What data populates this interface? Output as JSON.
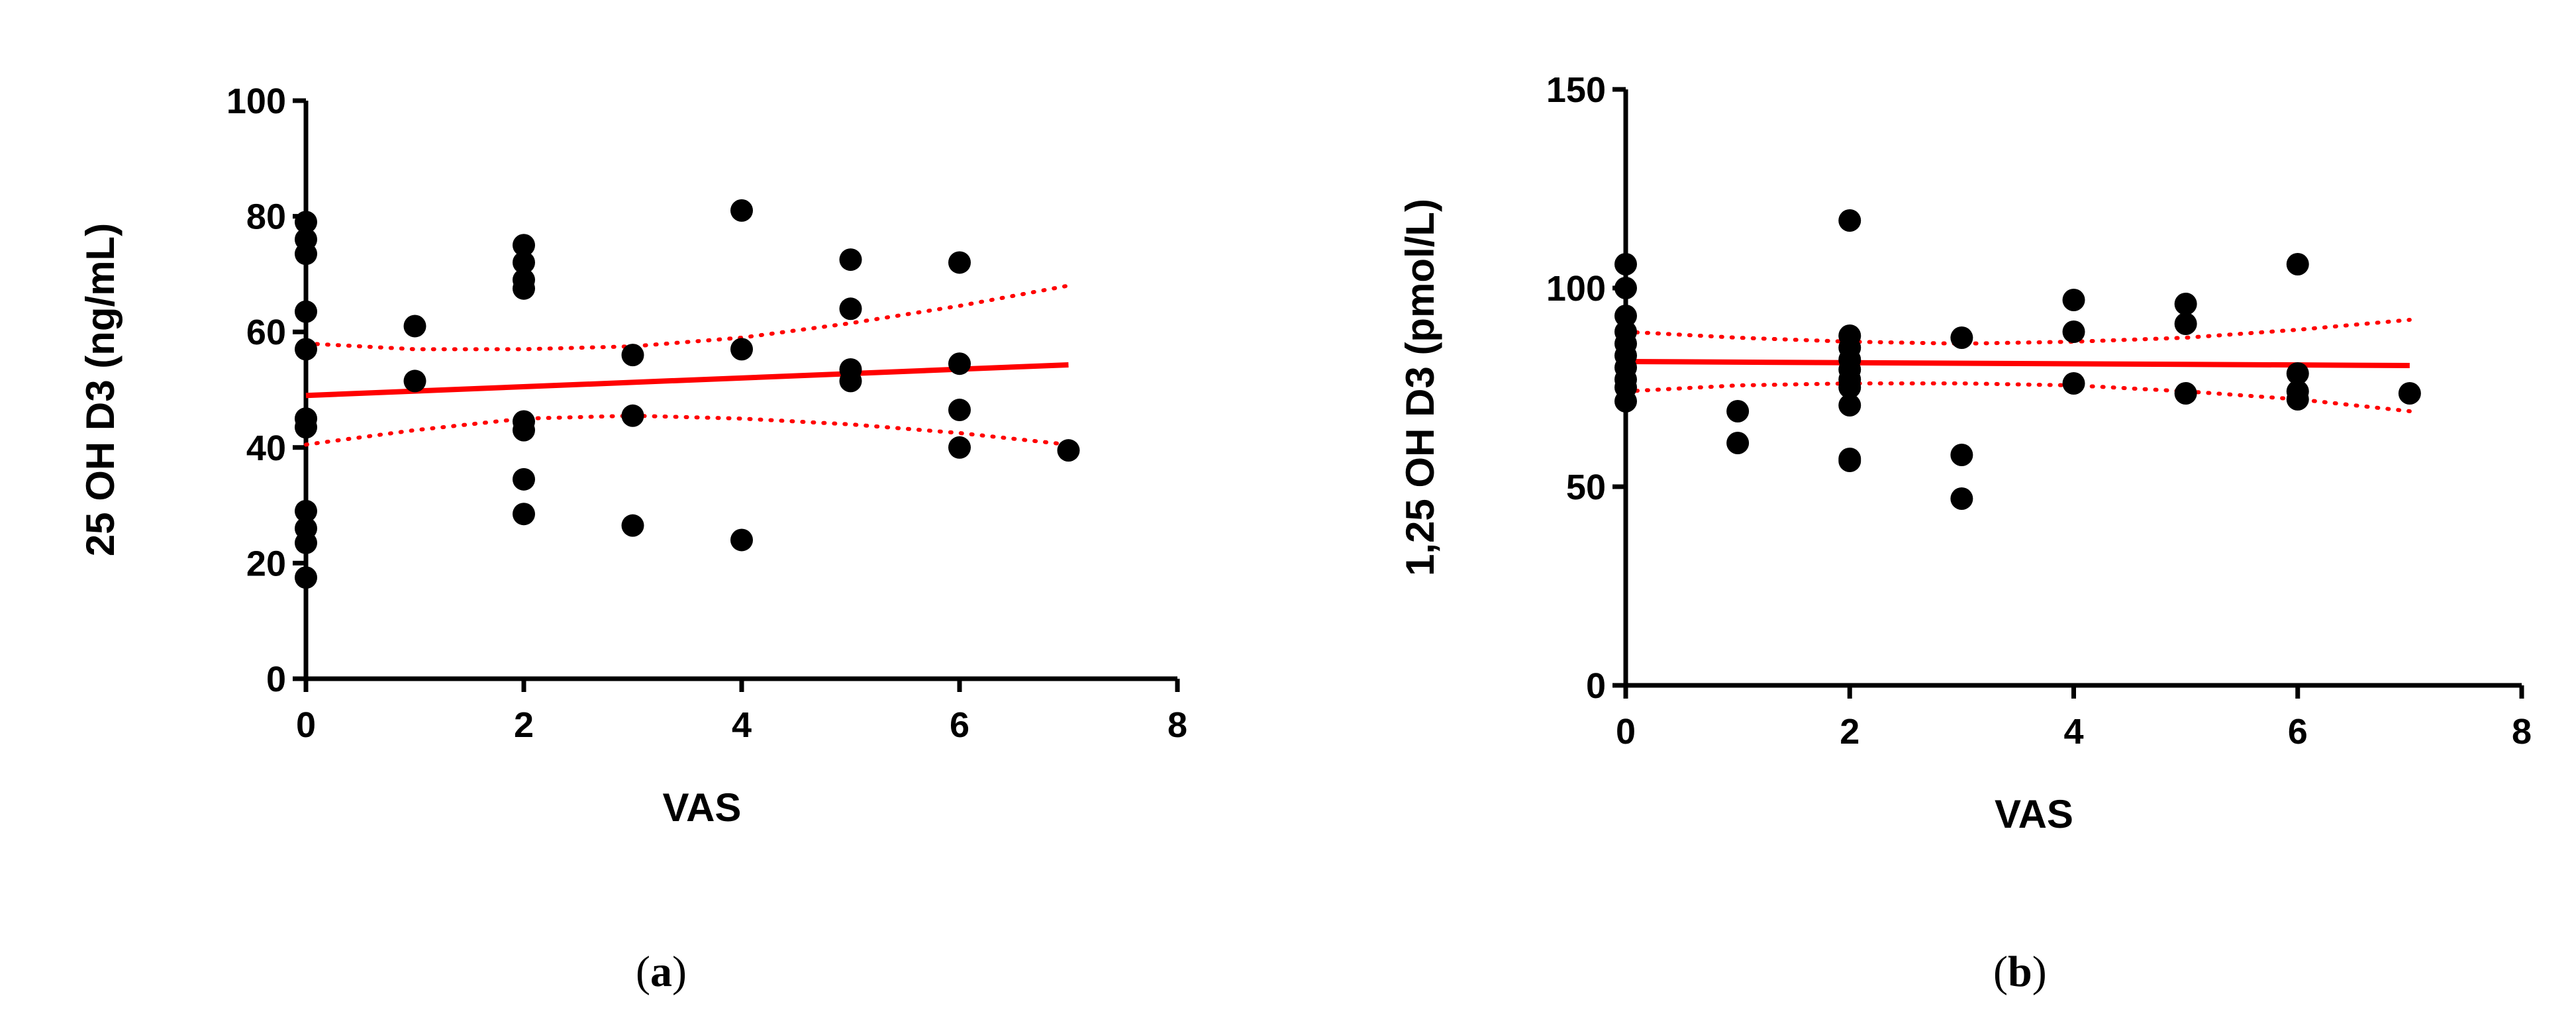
{
  "chart_data": [
    {
      "type": "scatter",
      "panel_label_prefix": "(",
      "panel_label_letter": "a",
      "panel_label_suffix": ")",
      "xlabel": "VAS",
      "ylabel": "25 OH D3 (ng/mL)",
      "xlim": [
        0,
        8
      ],
      "ylim": [
        0,
        100
      ],
      "xticks": [
        0,
        2,
        4,
        6,
        8
      ],
      "yticks": [
        0,
        20,
        40,
        60,
        80,
        100
      ],
      "grid": false,
      "line_color": "#ff0000",
      "point_color": "#000000",
      "points": [
        [
          0,
          79
        ],
        [
          0,
          76
        ],
        [
          0,
          73.5
        ],
        [
          0,
          63.5
        ],
        [
          0,
          57
        ],
        [
          0,
          45
        ],
        [
          0,
          43.5
        ],
        [
          0,
          29
        ],
        [
          0,
          26
        ],
        [
          0,
          23.5
        ],
        [
          0,
          17.5
        ],
        [
          1,
          61
        ],
        [
          1,
          51.5
        ],
        [
          2,
          75
        ],
        [
          2,
          72
        ],
        [
          2,
          69
        ],
        [
          2,
          67.5
        ],
        [
          2,
          44.5
        ],
        [
          2,
          43
        ],
        [
          2,
          34.5
        ],
        [
          2,
          28.5
        ],
        [
          3,
          56
        ],
        [
          3,
          45.5
        ],
        [
          3,
          26.5
        ],
        [
          4,
          81
        ],
        [
          4,
          57
        ],
        [
          4,
          24
        ],
        [
          5,
          72.5
        ],
        [
          5,
          64
        ],
        [
          5,
          53.5
        ],
        [
          5,
          51.5
        ],
        [
          6,
          72
        ],
        [
          6,
          54.5
        ],
        [
          6,
          46.5
        ],
        [
          6,
          40
        ],
        [
          7,
          39.5
        ]
      ],
      "fit": {
        "x": [
          0,
          7
        ],
        "y": [
          49,
          54.3
        ]
      },
      "ci_upper": {
        "x": [
          0,
          1,
          2,
          3,
          4,
          5,
          6,
          7
        ],
        "y": [
          58,
          57,
          57,
          57.5,
          59,
          61.5,
          64.5,
          68
        ]
      },
      "ci_lower": {
        "x": [
          0,
          1,
          2,
          3,
          4,
          5,
          6,
          7
        ],
        "y": [
          40.5,
          43,
          45,
          45.5,
          45,
          44,
          42.5,
          40.5
        ]
      }
    },
    {
      "type": "scatter",
      "panel_label_prefix": "(",
      "panel_label_letter": "b",
      "panel_label_suffix": ")",
      "xlabel": "VAS",
      "ylabel": "1,25 OH D3 (pmol/L)",
      "xlim": [
        0,
        8
      ],
      "ylim": [
        0,
        150
      ],
      "xticks": [
        0,
        2,
        4,
        6,
        8
      ],
      "yticks": [
        0,
        50,
        100,
        150
      ],
      "grid": false,
      "line_color": "#ff0000",
      "point_color": "#000000",
      "points": [
        [
          0,
          106
        ],
        [
          0,
          100
        ],
        [
          0,
          93
        ],
        [
          0,
          89
        ],
        [
          0,
          86
        ],
        [
          0,
          83
        ],
        [
          0,
          80
        ],
        [
          0,
          77
        ],
        [
          0,
          75
        ],
        [
          0,
          71.5
        ],
        [
          1,
          69
        ],
        [
          1,
          61
        ],
        [
          2,
          117
        ],
        [
          2,
          88
        ],
        [
          2,
          85
        ],
        [
          2,
          82
        ],
        [
          2,
          79.5
        ],
        [
          2,
          77
        ],
        [
          2,
          75
        ],
        [
          2,
          70.5
        ],
        [
          2,
          57
        ],
        [
          2,
          56.5
        ],
        [
          3,
          87.5
        ],
        [
          3,
          58
        ],
        [
          3,
          47
        ],
        [
          4,
          97
        ],
        [
          4,
          89
        ],
        [
          4,
          76
        ],
        [
          5,
          96
        ],
        [
          5,
          91
        ],
        [
          5,
          73.5
        ],
        [
          6,
          106
        ],
        [
          6,
          78.5
        ],
        [
          6,
          74
        ],
        [
          6,
          72
        ],
        [
          7,
          73.5
        ]
      ],
      "fit": {
        "x": [
          0,
          7
        ],
        "y": [
          81.5,
          80.5
        ]
      },
      "ci_upper": {
        "x": [
          0,
          1,
          2,
          3,
          4,
          5,
          6,
          7
        ],
        "y": [
          89,
          87.5,
          86.5,
          86,
          86.5,
          87.5,
          89.5,
          92
        ]
      },
      "ci_lower": {
        "x": [
          0,
          1,
          2,
          3,
          4,
          5,
          6,
          7
        ],
        "y": [
          74,
          75.5,
          76,
          76,
          75.5,
          74,
          72,
          69
        ]
      }
    }
  ]
}
